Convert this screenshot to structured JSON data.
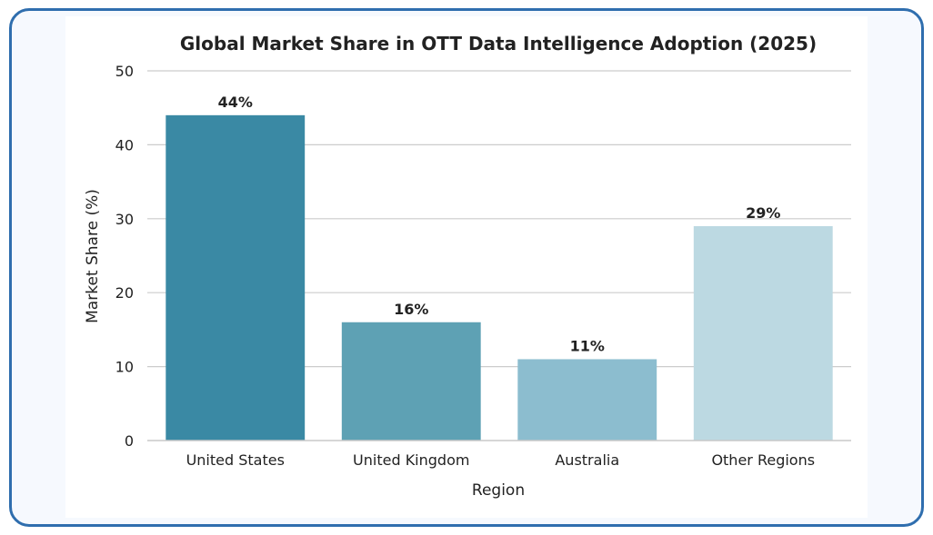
{
  "chart_data": {
    "type": "bar",
    "title": "Global Market Share in OTT Data Intelligence Adoption (2025)",
    "xlabel": "Region",
    "ylabel": "Market Share (%)",
    "categories": [
      "United States",
      "United Kingdom",
      "Australia",
      "Other Regions"
    ],
    "values": [
      44,
      16,
      11,
      29
    ],
    "data_labels": [
      "44%",
      "16%",
      "11%",
      "29%"
    ],
    "colors": [
      "#3a89a4",
      "#5ea1b4",
      "#8cbdcf",
      "#bcd9e2"
    ],
    "ylim": [
      0,
      50
    ],
    "yticks": [
      "0",
      "10",
      "20",
      "30",
      "40",
      "50"
    ],
    "grid": true
  }
}
